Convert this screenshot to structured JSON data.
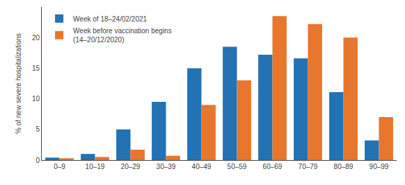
{
  "chart_data": {
    "type": "bar",
    "categories": [
      "0–9",
      "10–19",
      "20–29",
      "30–39",
      "40–49",
      "50–59",
      "60–69",
      "70–79",
      "80–89",
      "90–99"
    ],
    "series": [
      {
        "name": "Week of 18–24/02/2021",
        "color": "#2272b4",
        "values": [
          0.4,
          1.0,
          5.0,
          9.5,
          15.0,
          18.5,
          17.2,
          16.6,
          11.1,
          3.2
        ]
      },
      {
        "name": "Week before vaccination begins\n(14–20/12/2020)",
        "color": "#e8762c",
        "values": [
          0.3,
          0.5,
          1.7,
          0.7,
          9.0,
          13.0,
          23.5,
          22.2,
          20.0,
          7.0
        ]
      }
    ],
    "ylabel": "% of new severe hospitalizations",
    "ylim": [
      0,
      25
    ],
    "yticks": [
      0,
      5,
      10,
      15,
      20
    ],
    "grid": false,
    "legend": "upper left"
  }
}
